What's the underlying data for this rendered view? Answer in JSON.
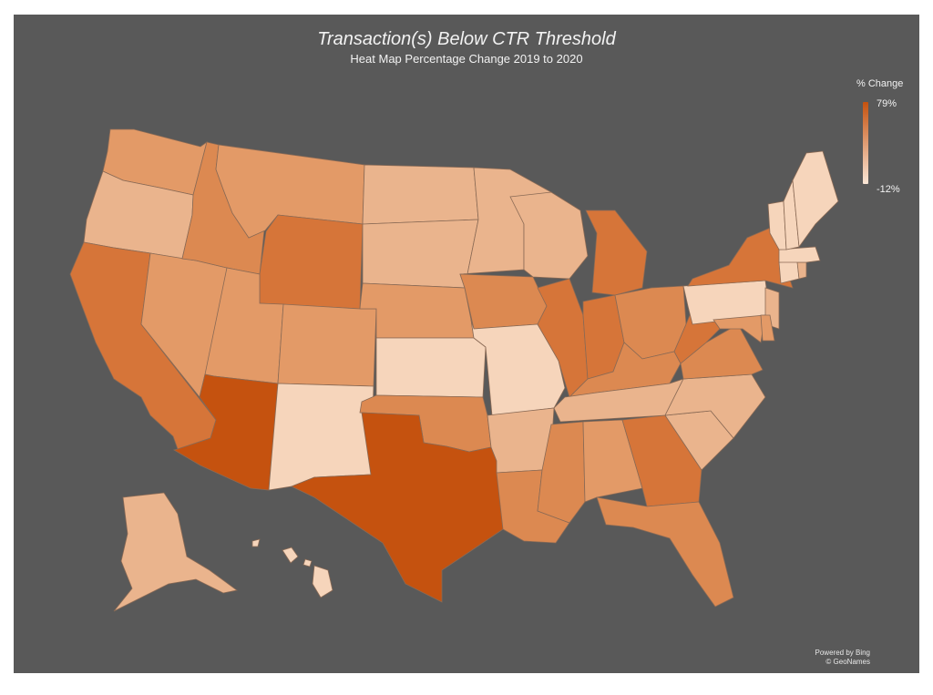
{
  "header": {
    "title": "Transaction(s) Below CTR Threshold",
    "subtitle": "Heat Map Percentage Change 2019 to 2020"
  },
  "legend": {
    "title": "% Change",
    "max_label": "79%",
    "min_label": "-12%",
    "color_max": "#c5520f",
    "color_min": "#fae6d6"
  },
  "credits": {
    "line1": "Powered by Bing",
    "line2": "© GeoNames"
  },
  "colors": {
    "panel": "#595959",
    "border": "#8a6a55",
    "low": "#f6d5bb",
    "lightmid": "#eab48d",
    "mid": "#e39a67",
    "midhigh": "#dc8951",
    "high": "#d67539",
    "max": "#c5520f"
  },
  "states": [
    {
      "name": "WA",
      "shade": "mid"
    },
    {
      "name": "OR",
      "shade": "lightmid"
    },
    {
      "name": "CA",
      "shade": "high"
    },
    {
      "name": "NV",
      "shade": "mid"
    },
    {
      "name": "ID",
      "shade": "midhigh"
    },
    {
      "name": "MT",
      "shade": "mid"
    },
    {
      "name": "WY",
      "shade": "high"
    },
    {
      "name": "UT",
      "shade": "mid"
    },
    {
      "name": "CO",
      "shade": "mid"
    },
    {
      "name": "AZ",
      "shade": "max"
    },
    {
      "name": "NM",
      "shade": "low"
    },
    {
      "name": "ND",
      "shade": "lightmid"
    },
    {
      "name": "SD",
      "shade": "lightmid"
    },
    {
      "name": "NE",
      "shade": "mid"
    },
    {
      "name": "KS",
      "shade": "low"
    },
    {
      "name": "OK",
      "shade": "midhigh"
    },
    {
      "name": "TX",
      "shade": "max"
    },
    {
      "name": "MN",
      "shade": "lightmid"
    },
    {
      "name": "IA",
      "shade": "midhigh"
    },
    {
      "name": "MO",
      "shade": "low"
    },
    {
      "name": "AR",
      "shade": "lightmid"
    },
    {
      "name": "LA",
      "shade": "midhigh"
    },
    {
      "name": "WI",
      "shade": "lightmid"
    },
    {
      "name": "IL",
      "shade": "high"
    },
    {
      "name": "MI",
      "shade": "high"
    },
    {
      "name": "IN",
      "shade": "high"
    },
    {
      "name": "OH",
      "shade": "midhigh"
    },
    {
      "name": "KY",
      "shade": "midhigh"
    },
    {
      "name": "TN",
      "shade": "lightmid"
    },
    {
      "name": "MS",
      "shade": "midhigh"
    },
    {
      "name": "AL",
      "shade": "mid"
    },
    {
      "name": "GA",
      "shade": "high"
    },
    {
      "name": "FL",
      "shade": "midhigh"
    },
    {
      "name": "SC",
      "shade": "lightmid"
    },
    {
      "name": "NC",
      "shade": "lightmid"
    },
    {
      "name": "VA",
      "shade": "midhigh"
    },
    {
      "name": "WV",
      "shade": "high"
    },
    {
      "name": "PA",
      "shade": "low"
    },
    {
      "name": "NY",
      "shade": "high"
    },
    {
      "name": "NJ",
      "shade": "lightmid"
    },
    {
      "name": "MD",
      "shade": "mid"
    },
    {
      "name": "DE",
      "shade": "mid"
    },
    {
      "name": "CT",
      "shade": "low"
    },
    {
      "name": "RI",
      "shade": "lightmid"
    },
    {
      "name": "MA",
      "shade": "low"
    },
    {
      "name": "VT",
      "shade": "low"
    },
    {
      "name": "NH",
      "shade": "low"
    },
    {
      "name": "ME",
      "shade": "low"
    },
    {
      "name": "AK",
      "shade": "lightmid"
    },
    {
      "name": "HI",
      "shade": "low"
    }
  ]
}
